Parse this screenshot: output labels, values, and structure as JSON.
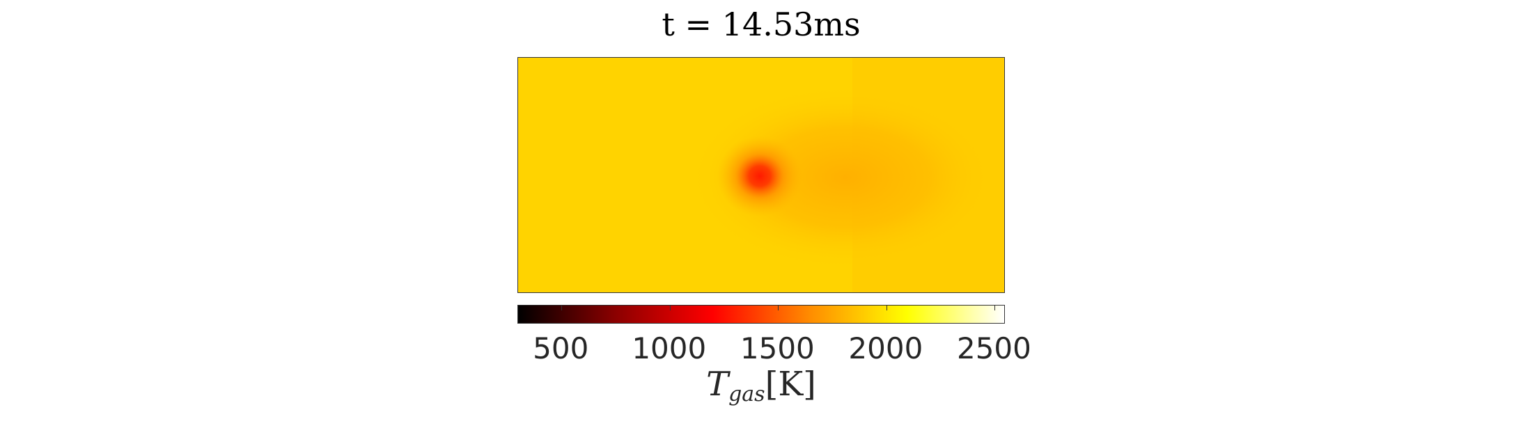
{
  "chart_data": {
    "type": "heatmap",
    "title": "t = 14.53ms",
    "colormap": "hot",
    "colormap_stops": [
      "#000000",
      "#8b0000",
      "#ff0000",
      "#ff8c00",
      "#ffff00",
      "#ffffff"
    ],
    "clim": [
      300,
      2550
    ],
    "colorbar": {
      "ticks": [
        500,
        1000,
        1500,
        2000,
        2500
      ],
      "tick_labels": [
        "500",
        "1000",
        "1500",
        "2000",
        "2500"
      ],
      "label_main": "T",
      "label_sub": "gas",
      "label_unit": "[K]",
      "orientation": "horizontal",
      "placement": "bottom"
    },
    "field": {
      "background_value": 2030,
      "hot_spot_min_value": 1250,
      "wake_value": 1830
    }
  }
}
